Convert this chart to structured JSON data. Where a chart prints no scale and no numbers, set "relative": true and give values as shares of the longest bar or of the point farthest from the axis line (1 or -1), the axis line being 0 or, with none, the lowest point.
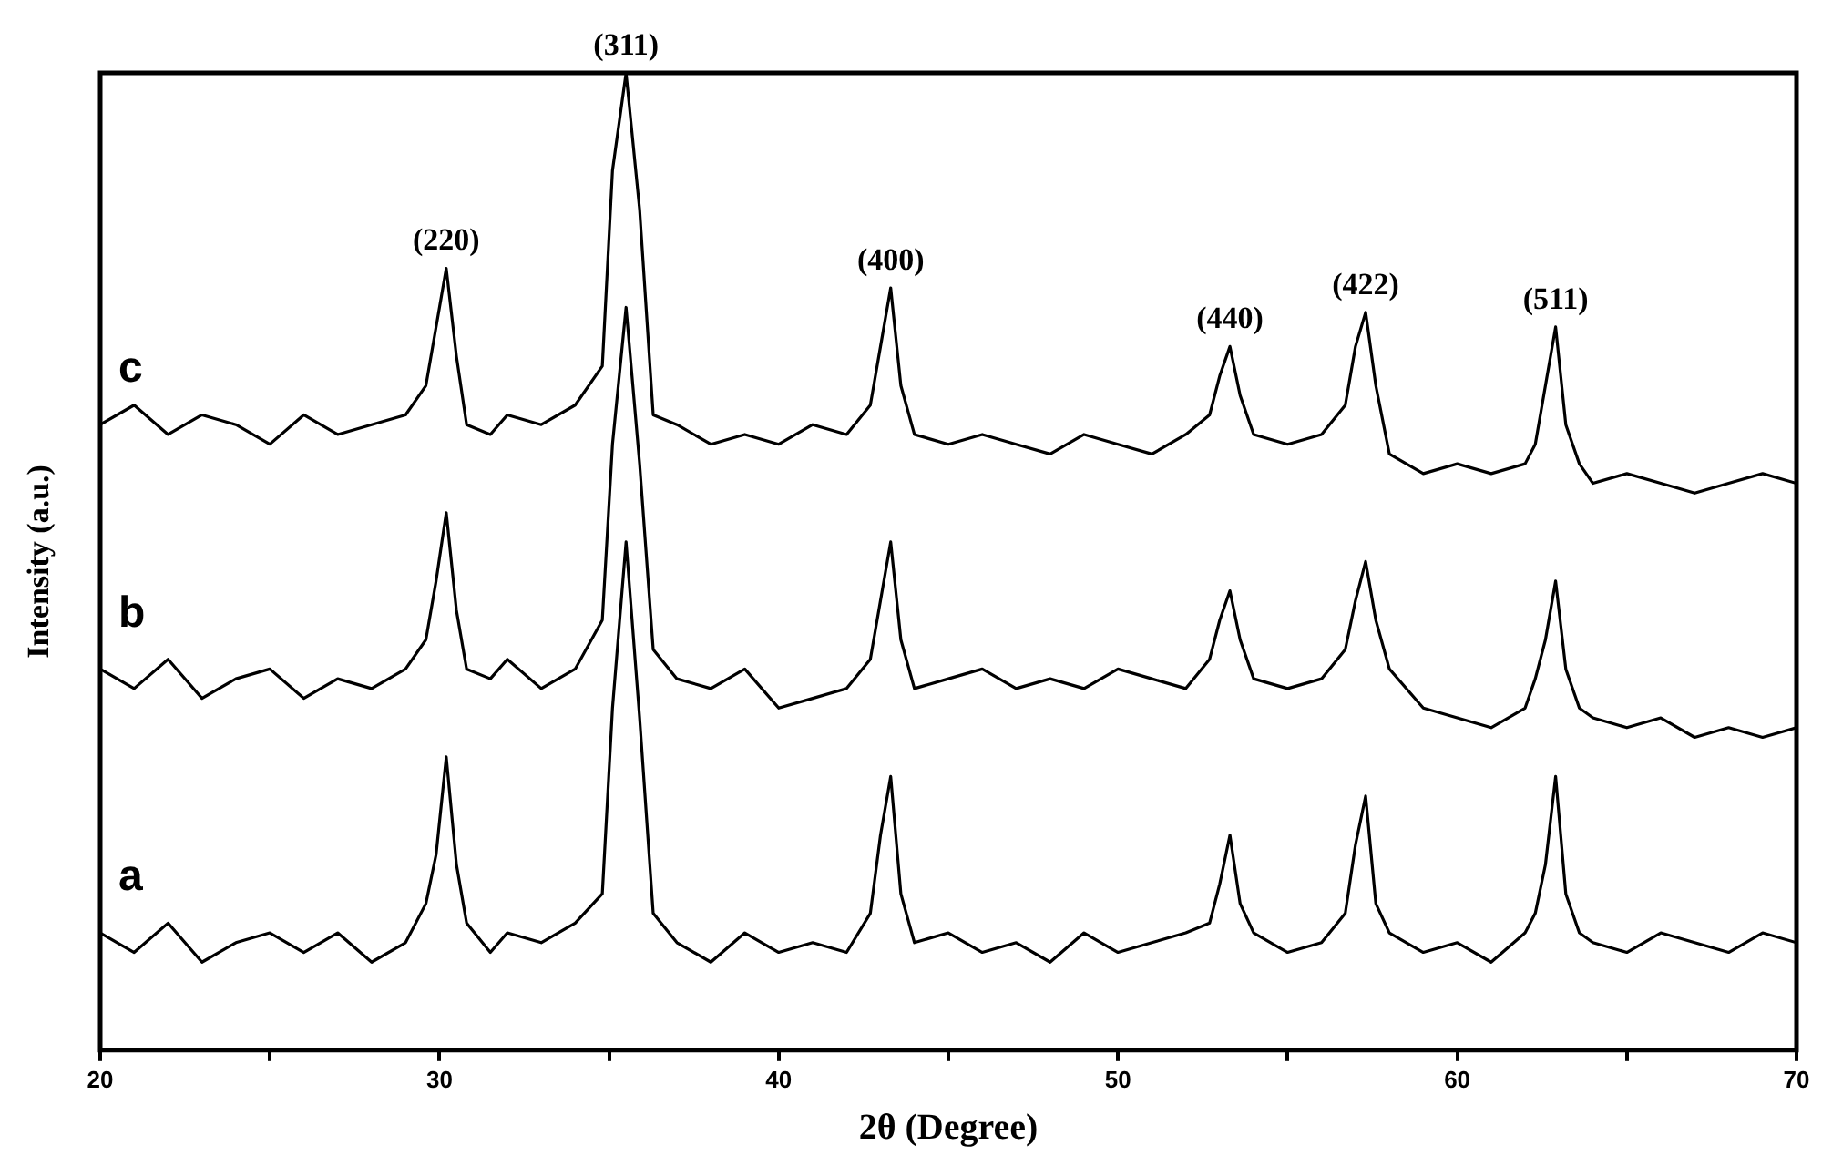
{
  "chart_data": {
    "type": "line",
    "relative": true,
    "xlabel": "2θ (Degree)",
    "ylabel": "Intensity (a.u.)",
    "xlim": [
      20,
      70
    ],
    "xticks": [
      20,
      {
        "value": 25,
        "label": null
      },
      30,
      {
        "value": 35,
        "label": null
      },
      40,
      {
        "value": 45,
        "label": null
      },
      50,
      {
        "value": 55,
        "label": null
      },
      60,
      {
        "value": 65,
        "label": null
      },
      70
    ],
    "marker": "none",
    "line_style": "solid",
    "legend": false,
    "grid": false,
    "x": [
      20,
      21,
      22,
      23,
      24,
      25,
      26,
      27,
      28,
      29,
      29.6,
      29.9,
      30.2,
      30.5,
      30.8,
      31.5,
      32,
      33,
      34,
      34.8,
      35.1,
      35.5,
      35.9,
      36.3,
      37,
      38,
      39,
      40,
      41,
      42,
      42.7,
      43,
      43.3,
      43.6,
      44,
      45,
      46,
      47,
      48,
      49,
      50,
      51,
      52,
      52.7,
      53.0,
      53.3,
      53.6,
      54,
      55,
      56,
      56.7,
      57.0,
      57.3,
      57.6,
      58,
      59,
      60,
      61,
      62,
      62.3,
      62.6,
      62.9,
      63.2,
      63.6,
      64,
      65,
      66,
      67,
      68,
      69,
      70
    ],
    "series": [
      {
        "name": "a",
        "color": "#000000",
        "values": [
          0.12,
          0.1,
          0.13,
          0.09,
          0.11,
          0.12,
          0.1,
          0.12,
          0.09,
          0.11,
          0.15,
          0.2,
          0.3,
          0.19,
          0.13,
          0.1,
          0.12,
          0.11,
          0.13,
          0.16,
          0.35,
          0.52,
          0.34,
          0.14,
          0.11,
          0.09,
          0.12,
          0.1,
          0.11,
          0.1,
          0.14,
          0.22,
          0.28,
          0.16,
          0.11,
          0.12,
          0.1,
          0.11,
          0.09,
          0.12,
          0.1,
          0.11,
          0.12,
          0.13,
          0.17,
          0.22,
          0.15,
          0.12,
          0.1,
          0.11,
          0.14,
          0.21,
          0.26,
          0.15,
          0.12,
          0.1,
          0.11,
          0.09,
          0.12,
          0.14,
          0.19,
          0.28,
          0.16,
          0.12,
          0.11,
          0.1,
          0.12,
          0.11,
          0.1,
          0.12,
          0.11
        ]
      },
      {
        "name": "b",
        "color": "#000000",
        "values": [
          0.39,
          0.37,
          0.4,
          0.36,
          0.38,
          0.39,
          0.36,
          0.38,
          0.37,
          0.39,
          0.42,
          0.48,
          0.55,
          0.45,
          0.39,
          0.38,
          0.4,
          0.37,
          0.39,
          0.44,
          0.62,
          0.76,
          0.6,
          0.41,
          0.38,
          0.37,
          0.39,
          0.35,
          0.36,
          0.37,
          0.4,
          0.46,
          0.52,
          0.42,
          0.37,
          0.38,
          0.39,
          0.37,
          0.38,
          0.37,
          0.39,
          0.38,
          0.37,
          0.4,
          0.44,
          0.47,
          0.42,
          0.38,
          0.37,
          0.38,
          0.41,
          0.46,
          0.5,
          0.44,
          0.39,
          0.35,
          0.34,
          0.33,
          0.35,
          0.38,
          0.42,
          0.48,
          0.39,
          0.35,
          0.34,
          0.33,
          0.34,
          0.32,
          0.33,
          0.32,
          0.33
        ]
      },
      {
        "name": "c",
        "color": "#000000",
        "values": [
          0.64,
          0.66,
          0.63,
          0.65,
          0.64,
          0.62,
          0.65,
          0.63,
          0.64,
          0.65,
          0.68,
          0.74,
          0.8,
          0.71,
          0.64,
          0.63,
          0.65,
          0.64,
          0.66,
          0.7,
          0.9,
          1.0,
          0.86,
          0.65,
          0.64,
          0.62,
          0.63,
          0.62,
          0.64,
          0.63,
          0.66,
          0.72,
          0.78,
          0.68,
          0.63,
          0.62,
          0.63,
          0.62,
          0.61,
          0.63,
          0.62,
          0.61,
          0.63,
          0.65,
          0.69,
          0.72,
          0.67,
          0.63,
          0.62,
          0.63,
          0.66,
          0.72,
          0.755,
          0.68,
          0.61,
          0.59,
          0.6,
          0.59,
          0.6,
          0.62,
          0.68,
          0.74,
          0.64,
          0.6,
          0.58,
          0.59,
          0.58,
          0.57,
          0.58,
          0.59,
          0.58
        ]
      }
    ],
    "annotations": [
      {
        "text": "(220)",
        "x": 30.2,
        "y": 0.8
      },
      {
        "text": "(311)",
        "x": 35.5,
        "y": 1.0
      },
      {
        "text": "(400)",
        "x": 43.3,
        "y": 0.78
      },
      {
        "text": "(440)",
        "x": 53.3,
        "y": 0.72
      },
      {
        "text": "(422)",
        "x": 57.3,
        "y": 0.755
      },
      {
        "text": "(511)",
        "x": 62.9,
        "y": 0.74
      }
    ]
  }
}
